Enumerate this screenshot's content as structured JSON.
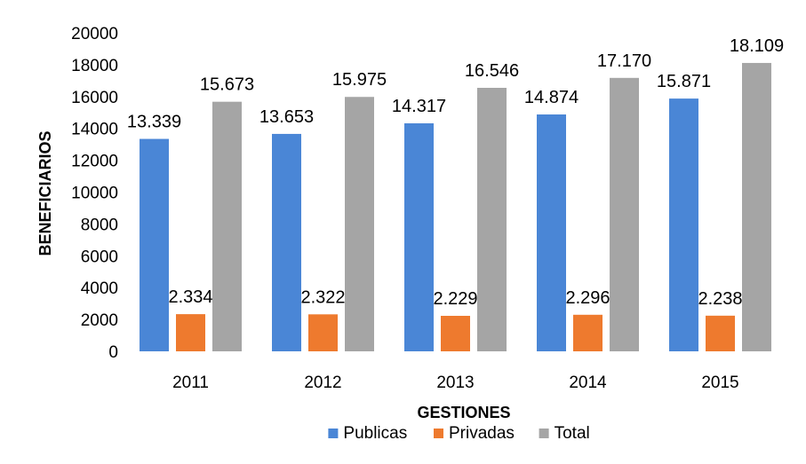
{
  "chart_data": {
    "type": "bar",
    "categories": [
      "2011",
      "2012",
      "2013",
      "2014",
      "2015"
    ],
    "series": [
      {
        "name": "Publicas",
        "color": "#4A86D6",
        "values": [
          13339,
          13653,
          14317,
          14874,
          15871
        ],
        "labels": [
          "13.339",
          "13.653",
          "14.317",
          "14.874",
          "15.871"
        ]
      },
      {
        "name": "Privadas",
        "color": "#EE7A2E",
        "values": [
          2334,
          2322,
          2229,
          2296,
          2238
        ],
        "labels": [
          "2.334",
          "2.322",
          "2.229",
          "2.296",
          "2.238"
        ]
      },
      {
        "name": "Total",
        "color": "#A5A5A5",
        "values": [
          15673,
          15975,
          16546,
          17170,
          18109
        ],
        "labels": [
          "15.673",
          "15.975",
          "16.546",
          "17.170",
          "18.109"
        ]
      }
    ],
    "xlabel": "GESTIONES",
    "ylabel": "BENEFICIARIOS",
    "ylim": [
      0,
      20000
    ],
    "yticks": [
      0,
      2000,
      4000,
      6000,
      8000,
      10000,
      12000,
      14000,
      16000,
      18000,
      20000
    ],
    "grid": false,
    "legend_position": "bottom"
  }
}
